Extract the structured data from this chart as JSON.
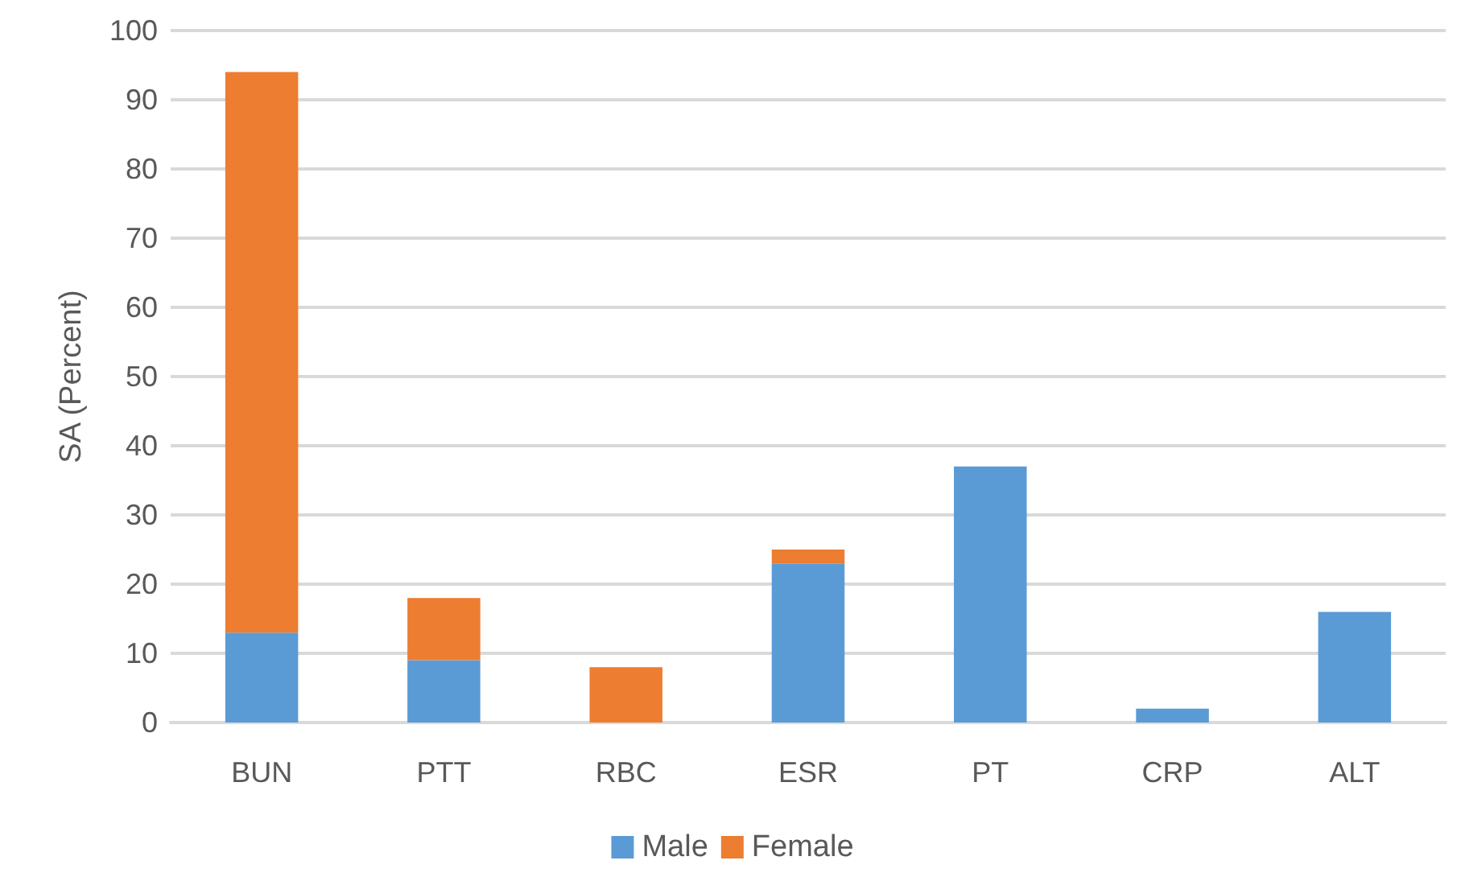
{
  "chart_data": {
    "type": "bar",
    "stacked": true,
    "ylabel": "SA (Percent)",
    "categories": [
      "BUN",
      "PTT",
      "RBC",
      "ESR",
      "PT",
      "CRP",
      "ALT"
    ],
    "series": [
      {
        "name": "Male",
        "color": "#5b9bd5",
        "values": [
          13,
          9,
          0,
          23,
          37,
          2,
          16
        ]
      },
      {
        "name": "Female",
        "color": "#ed7d31",
        "values": [
          81,
          9,
          8,
          2,
          0,
          0,
          0
        ]
      }
    ],
    "ylim": [
      0,
      100
    ],
    "yticks": [
      0,
      10,
      20,
      30,
      40,
      50,
      60,
      70,
      80,
      90,
      100
    ],
    "grid": "y",
    "legend": "bottom"
  }
}
